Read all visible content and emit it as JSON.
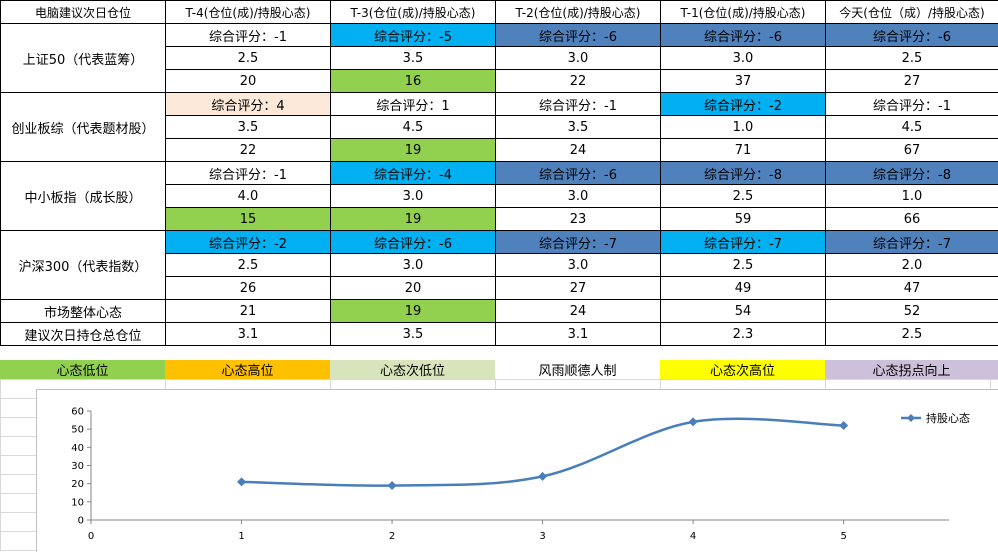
{
  "sheet": {
    "headers": [
      "电脑建议次日仓位",
      "T-4(仓位(成)/持股心态)",
      "T-3(仓位(成)/持股心态)",
      "T-2(仓位(成)/持股心态)",
      "T-1(仓位(成)/持股心态)",
      "今天(仓位（成）/持股心态)"
    ],
    "groups": [
      {
        "label": "上证50（代表蓝筹）",
        "scores": [
          "综合评分：-1",
          "综合评分：-5",
          "综合评分：-6",
          "综合评分：-6",
          "综合评分：-6"
        ],
        "positions": [
          "2.5",
          "3.5",
          "3.0",
          "3.0",
          "2.5"
        ],
        "mood": [
          "20",
          "16",
          "22",
          "37",
          "27"
        ]
      },
      {
        "label": "创业板综（代表题材股）",
        "scores": [
          "综合评分：4",
          "综合评分：1",
          "综合评分：-1",
          "综合评分：-2",
          "综合评分：-1"
        ],
        "positions": [
          "3.5",
          "4.5",
          "3.5",
          "1.0",
          "4.5"
        ],
        "mood": [
          "22",
          "19",
          "24",
          "71",
          "67"
        ]
      },
      {
        "label": "中小板指（成长股）",
        "scores": [
          "综合评分：-1",
          "综合评分：-4",
          "综合评分：-6",
          "综合评分：-8",
          "综合评分：-8"
        ],
        "positions": [
          "4.0",
          "3.0",
          "3.0",
          "2.5",
          "1.0"
        ],
        "mood": [
          "15",
          "19",
          "23",
          "59",
          "66"
        ]
      },
      {
        "label": "沪深300（代表指数）",
        "scores": [
          "综合评分：-2",
          "综合评分：-6",
          "综合评分：-7",
          "综合评分：-7",
          "综合评分：-7"
        ],
        "positions": [
          "2.5",
          "3.0",
          "3.0",
          "2.5",
          "2.0"
        ],
        "mood": [
          "26",
          "20",
          "27",
          "49",
          "47"
        ]
      }
    ],
    "market_label": "市场整体心态",
    "market_values": [
      "21",
      "19",
      "24",
      "54",
      "52"
    ],
    "advice_label": "建议次日持仓总仓位",
    "advice_values": [
      "3.1",
      "3.5",
      "3.1",
      "2.3",
      "2.5"
    ],
    "legend": [
      "心态低位",
      "心态高位",
      "心态次低位",
      "风雨顺德人制",
      "心态次高位",
      "心态拐点向上"
    ],
    "colors": {
      "legend_bg": [
        "#92d050",
        "#ffc000",
        "#d8e4bc",
        "#ffffff",
        "#ffff00",
        "#ccc0da"
      ],
      "highlight_light_blue": "#00b0f0",
      "highlight_blue": "#4f81bd",
      "highlight_green": "#92d050",
      "highlight_peach": "#fde9d9",
      "series_line": "#4a7ebb"
    }
  },
  "chart_data": {
    "type": "line",
    "x": [
      1,
      2,
      3,
      4,
      5
    ],
    "series": [
      {
        "name": "持股心态",
        "values": [
          21,
          19,
          24,
          54,
          52
        ]
      }
    ],
    "xlim": [
      0,
      5.7
    ],
    "ylim": [
      0,
      60
    ],
    "xticks": [
      "0",
      "1",
      "2",
      "3",
      "4",
      "5"
    ],
    "yticks": [
      "0",
      "10",
      "20",
      "30",
      "40",
      "50",
      "60"
    ],
    "smooth": true,
    "marker": "diamond",
    "legend_position": "right",
    "grid": false
  }
}
